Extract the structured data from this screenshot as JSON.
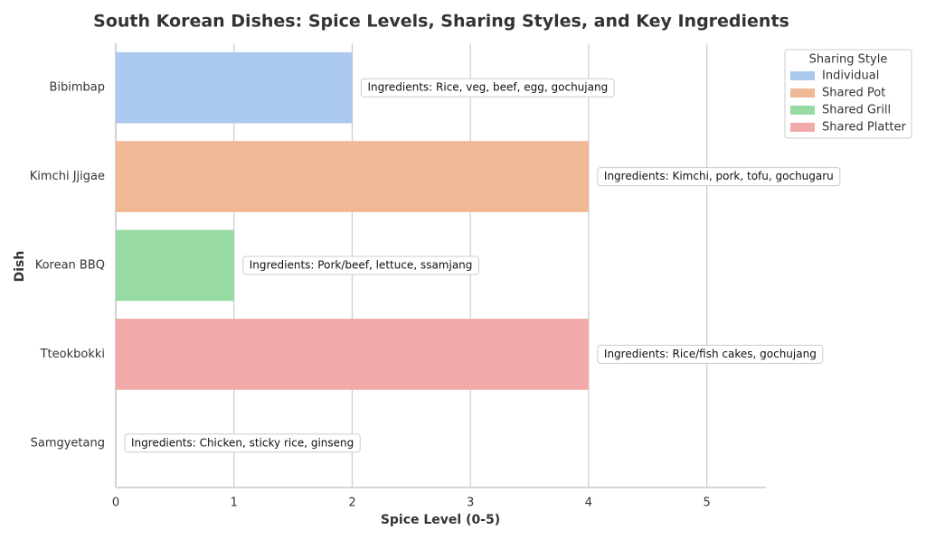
{
  "chart_data": {
    "type": "bar",
    "orientation": "horizontal",
    "title": "South Korean Dishes: Spice Levels, Sharing Styles, and Key Ingredients",
    "x_label": "Spice Level (0-5)",
    "y_label": "Dish",
    "categories": [
      "Bibimbap",
      "Kimchi Jjigae",
      "Korean BBQ",
      "Tteokbokki",
      "Samgyetang"
    ],
    "series": [
      {
        "name": "Individual",
        "color": "#abc8ee",
        "values": [
          2,
          null,
          null,
          null,
          0
        ]
      },
      {
        "name": "Shared Pot",
        "color": "#f0b895",
        "values": [
          null,
          4,
          null,
          null,
          null
        ]
      },
      {
        "name": "Shared Grill",
        "color": "#98dba2",
        "values": [
          null,
          null,
          1,
          null,
          null
        ]
      },
      {
        "name": "Shared Platter",
        "color": "#f2aaa8",
        "values": [
          null,
          null,
          null,
          4,
          null
        ]
      }
    ],
    "annotations": [
      "Ingredients: Rice, veg, beef, egg, gochujang",
      "Ingredients: Kimchi, pork, tofu, gochugaru",
      "Ingredients: Pork/beef, lettuce, ssamjang",
      "Ingredients: Rice/fish cakes, gochujang",
      "Ingredients: Chicken, sticky rice, ginseng"
    ],
    "legend_title": "Sharing Style",
    "legend_position": "upper right outside",
    "xlim": [
      0,
      5.5
    ],
    "xticks": [
      0,
      1,
      2,
      3,
      4,
      5
    ],
    "grid": true
  }
}
